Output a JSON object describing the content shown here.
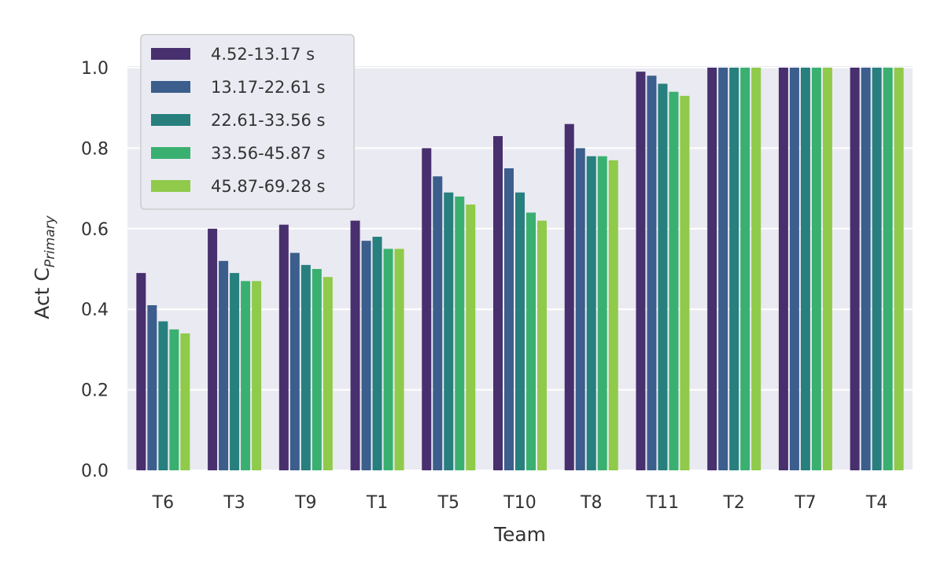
{
  "chart_data": {
    "type": "bar",
    "xlabel": "Team",
    "ylabel_main": "Act C",
    "ylabel_sub": "Primary",
    "ylim": [
      0,
      1.05
    ],
    "yticks": [
      "0.0",
      "0.2",
      "0.4",
      "0.6",
      "0.8",
      "1.0"
    ],
    "ytick_values": [
      0,
      0.2,
      0.4,
      0.6,
      0.8,
      1.0
    ],
    "grid": true,
    "legend_position": "top-left",
    "categories": [
      "T6",
      "T3",
      "T9",
      "T1",
      "T5",
      "T10",
      "T8",
      "T11",
      "T2",
      "T7",
      "T4"
    ],
    "series": [
      {
        "name": "4.52-13.17 s",
        "color": "#482f6e",
        "values": [
          0.49,
          0.6,
          0.61,
          0.62,
          0.8,
          0.83,
          0.86,
          0.99,
          1.0,
          1.0,
          1.0
        ]
      },
      {
        "name": "13.17-22.61 s",
        "color": "#3b5e8c",
        "values": [
          0.41,
          0.52,
          0.54,
          0.57,
          0.73,
          0.75,
          0.8,
          0.98,
          1.0,
          1.0,
          1.0
        ]
      },
      {
        "name": "22.61-33.56 s",
        "color": "#277f7e",
        "values": [
          0.37,
          0.49,
          0.51,
          0.58,
          0.69,
          0.69,
          0.78,
          0.96,
          1.0,
          1.0,
          1.0
        ]
      },
      {
        "name": "33.56-45.87 s",
        "color": "#3ab070",
        "values": [
          0.35,
          0.47,
          0.5,
          0.55,
          0.68,
          0.64,
          0.78,
          0.94,
          1.0,
          1.0,
          1.0
        ]
      },
      {
        "name": "45.87-69.28 s",
        "color": "#8fca4a",
        "values": [
          0.34,
          0.47,
          0.48,
          0.55,
          0.66,
          0.62,
          0.77,
          0.93,
          1.0,
          1.0,
          1.0
        ]
      }
    ]
  }
}
